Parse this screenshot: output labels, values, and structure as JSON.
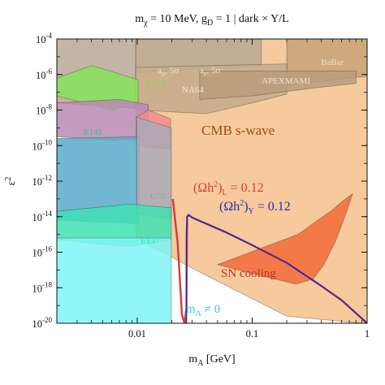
{
  "chart_data": {
    "type": "area",
    "title_parts": {
      "m": "m",
      "chi": "χ",
      "mid": " = 10 MeV, g",
      "D": "D",
      "rest": " = 1 | dark × Y/L"
    },
    "xlabel_parts": {
      "m": "m",
      "A": "A",
      "unit": " [GeV]"
    },
    "ylabel_parts": {
      "eps": "ε",
      "pow": "2"
    },
    "x_scale": "log",
    "y_scale": "log",
    "xlim": [
      0.002,
      1
    ],
    "ylim": [
      1e-20,
      0.0001
    ],
    "x_ticks": [
      {
        "value": 0.01,
        "label": "0.01"
      },
      {
        "value": 0.1,
        "label": "0.1"
      },
      {
        "value": 1,
        "label": "1"
      }
    ],
    "y_ticks": [
      {
        "exp": -4,
        "base": "10",
        "sup": "-4"
      },
      {
        "exp": -6,
        "base": "10",
        "sup": "-6"
      },
      {
        "exp": -8,
        "base": "10",
        "sup": "-8"
      },
      {
        "exp": -10,
        "base": "10",
        "sup": "-10"
      },
      {
        "exp": -12,
        "base": "10",
        "sup": "-12"
      },
      {
        "exp": -14,
        "base": "10",
        "sup": "-14"
      },
      {
        "exp": -16,
        "base": "10",
        "sup": "-16"
      },
      {
        "exp": -18,
        "base": "10",
        "sup": "-18"
      },
      {
        "exp": -20,
        "base": "10",
        "sup": "-20"
      }
    ],
    "regions": [
      {
        "name": "CMB s-wave",
        "color": "#f5c491",
        "label_color": "#a34a16",
        "points": [
          [
            0.0098,
            -4
          ],
          [
            1,
            -4
          ],
          [
            1,
            -20
          ],
          [
            0.92,
            -20
          ],
          [
            0.2,
            -19.6
          ],
          [
            0.03,
            -16.9
          ],
          [
            0.0098,
            -15.2
          ]
        ]
      },
      {
        "name": "BaBar",
        "color": "#c9a278",
        "label_color": "#ece0cf",
        "points": [
          [
            0.2,
            -4
          ],
          [
            1,
            -4
          ],
          [
            1,
            -6.1
          ],
          [
            0.5,
            -6.3
          ],
          [
            0.2,
            -6.6
          ]
        ]
      },
      {
        "name": "aμ, 5σ",
        "color": "#b9a994",
        "label_color": "#ebe0d2",
        "points": [
          [
            0.002,
            -4
          ],
          [
            0.0097,
            -4
          ],
          [
            0.0097,
            -7.9
          ],
          [
            0.002,
            -7.6
          ]
        ]
      },
      {
        "name": "ae, 5σ",
        "color": "#b9a994",
        "label_color": "#ebe0d2",
        "points": [
          [
            0.0097,
            -4
          ],
          [
            0.12,
            -4
          ],
          [
            0.12,
            -5.5
          ],
          [
            0.0097,
            -5.9
          ]
        ]
      },
      {
        "name": "NA64",
        "color": "#c4ab8c",
        "label_color": "#efe4d6",
        "points": [
          [
            0.0097,
            -5.6
          ],
          [
            0.2,
            -5.4
          ],
          [
            0.2,
            -7.1
          ],
          [
            0.1,
            -7.6
          ],
          [
            0.04,
            -8.2
          ],
          [
            0.0097,
            -8.0
          ]
        ]
      },
      {
        "name": "APEXMAMI",
        "color": "#b99d7b",
        "label_color": "#efe4d6",
        "points": [
          [
            0.035,
            -5.8
          ],
          [
            0.8,
            -5.8
          ],
          [
            0.8,
            -6.5
          ],
          [
            0.3,
            -6.8
          ],
          [
            0.1,
            -7.2
          ],
          [
            0.035,
            -7.4
          ]
        ]
      },
      {
        "name": "E774",
        "color": "#86e45c",
        "label_color": "#7ed64f",
        "points": [
          [
            0.002,
            -6.2
          ],
          [
            0.004,
            -5.5
          ],
          [
            0.0065,
            -5.9
          ],
          [
            0.0102,
            -6.3
          ],
          [
            0.0102,
            -7.6
          ],
          [
            0.006,
            -8.0
          ],
          [
            0.002,
            -7.2
          ]
        ]
      },
      {
        "name": "E141",
        "color": "#b98ab4",
        "label_color": "#b98ab4",
        "points": [
          [
            0.002,
            -7.6
          ],
          [
            0.007,
            -7.4
          ],
          [
            0.0125,
            -7.7
          ],
          [
            0.0125,
            -9.6
          ],
          [
            0.006,
            -9.7
          ],
          [
            0.002,
            -9.5
          ]
        ]
      },
      {
        "name": "",
        "color": "#f28c8e",
        "label_color": "#e27a7c",
        "points": [
          [
            0.0098,
            -8.4
          ],
          [
            0.0125,
            -8.0
          ],
          [
            0.0195,
            -8.5
          ],
          [
            0.0195,
            -10.2
          ],
          [
            0.0098,
            -10.0
          ]
        ]
      },
      {
        "name": "",
        "color": "#5aa9c8",
        "label_color": "#5aa9c8",
        "points": [
          [
            0.002,
            -9.6
          ],
          [
            0.0104,
            -9.5
          ],
          [
            0.0104,
            -14.4
          ],
          [
            0.002,
            -14.2
          ]
        ]
      },
      {
        "name": "U70",
        "color": "#a9a9b7",
        "label_color": "#9a9aa8",
        "points": [
          [
            0.0099,
            -8.4
          ],
          [
            0.0198,
            -9.0
          ],
          [
            0.0198,
            -14.1
          ],
          [
            0.0099,
            -13.8
          ]
        ]
      },
      {
        "name": "E137",
        "color": "#3fe0b4",
        "label_color": "#3fe0b4",
        "points": [
          [
            0.002,
            -13.7
          ],
          [
            0.0085,
            -13.3
          ],
          [
            0.0198,
            -13.5
          ],
          [
            0.0198,
            -15.3
          ],
          [
            0.0085,
            -15.7
          ],
          [
            0.002,
            -15.3
          ]
        ]
      },
      {
        "name": "mA ≠ 0",
        "color": "#7ff3f6",
        "label_color": "#3ec3f0",
        "points": [
          [
            0.002,
            -15.2
          ],
          [
            0.0198,
            -15.2
          ],
          [
            0.0198,
            -20
          ],
          [
            0.002,
            -20
          ]
        ]
      },
      {
        "name": "SN cooling",
        "color": "#f26b3b",
        "label_color": "#c22c22",
        "points": [
          [
            0.05,
            -16.7
          ],
          [
            0.25,
            -15.0
          ],
          [
            0.48,
            -13.7
          ],
          [
            0.62,
            -13.1
          ],
          [
            0.75,
            -12.7
          ],
          [
            0.64,
            -14.0
          ],
          [
            0.53,
            -15.4
          ],
          [
            0.42,
            -16.7
          ],
          [
            0.34,
            -17.5
          ],
          [
            0.24,
            -17.8
          ]
        ]
      }
    ],
    "series": [
      {
        "name": "(Ωh²)L = 0.12",
        "color": "#d43b3b",
        "x": [
          0.0204,
          0.0225,
          0.0245,
          0.0258,
          0.0268,
          0.0272,
          0.028,
          0.03,
          0.04,
          0.06,
          0.1,
          0.2,
          0.4,
          0.6,
          1.0
        ],
        "y": [
          -13.0,
          -15.5,
          -19.5,
          -20,
          -19.2,
          -14.0,
          -13.9,
          -14.05,
          -14.4,
          -14.9,
          -15.6,
          -16.6,
          -17.9,
          -18.7,
          -20
        ]
      },
      {
        "name": "(Ωh²)Y = 0.12",
        "color": "#2b2bb0",
        "x": [
          0.0268,
          0.0268,
          0.0272,
          0.028,
          0.03,
          0.04,
          0.06,
          0.1,
          0.2,
          0.4,
          0.6,
          1.0
        ],
        "y": [
          -20,
          -15.0,
          -14.0,
          -13.9,
          -14.05,
          -14.4,
          -14.9,
          -15.6,
          -16.6,
          -17.9,
          -18.7,
          -20
        ]
      }
    ],
    "annotations": {
      "cmb": "CMB s-wave",
      "omegaL_a": "(Ωh",
      "omegaL_sup": "2",
      "omegaL_b": ")",
      "omegaL_sub": "L",
      "omegaL_c": " = 0.12",
      "omegaY_a": "(Ωh",
      "omegaY_sup": "2",
      "omegaY_b": ")",
      "omegaY_sub": "Y",
      "omegaY_c": " = 0.12",
      "sn": "SN cooling",
      "mA_m": "m",
      "mA_sub": "A",
      "mA_rest": " ≠ 0",
      "babar": "BaBar",
      "amu_a": "a",
      "amu_sub": "μ",
      "amu_rest": ", 5σ",
      "ae_a": "a",
      "ae_sub": "e",
      "ae_rest": ", 5σ",
      "na64": "NA64",
      "apexmami": "APEXMAMI",
      "e774": "E774",
      "e141": "E141",
      "u70": "U70",
      "e137": "E137"
    },
    "grid": false,
    "legend": "none"
  }
}
